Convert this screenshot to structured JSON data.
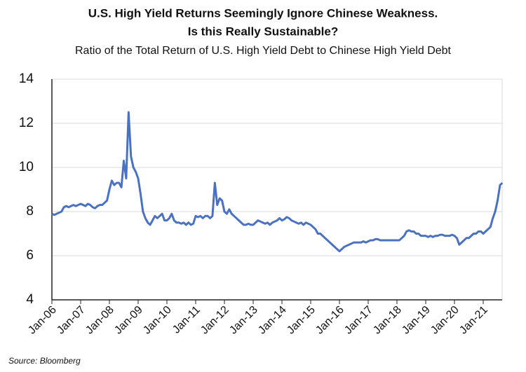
{
  "chart_data": {
    "type": "line",
    "title": [
      "U.S. High Yield Returns Seemingly Ignore Chinese Weakness.",
      "Is this Really Sustainable?"
    ],
    "subtitle": "Ratio of the Total Return of U.S. High Yield Debt to Chinese High Yield Debt",
    "source": "Source: Bloomberg",
    "categories": [
      "Jan-06",
      null,
      null,
      null,
      null,
      null,
      null,
      null,
      null,
      null,
      null,
      null,
      "Jan-07",
      null,
      null,
      null,
      null,
      null,
      null,
      null,
      null,
      null,
      null,
      null,
      "Jan-08",
      null,
      null,
      null,
      null,
      null,
      null,
      null,
      null,
      null,
      null,
      null,
      "Jan-09",
      null,
      null,
      null,
      null,
      null,
      null,
      null,
      null,
      null,
      null,
      null,
      "Jan-10",
      null,
      null,
      null,
      null,
      null,
      null,
      null,
      null,
      null,
      null,
      null,
      "Jan-11",
      null,
      null,
      null,
      null,
      null,
      null,
      null,
      null,
      null,
      null,
      null,
      "Jan-12",
      null,
      null,
      null,
      null,
      null,
      null,
      null,
      null,
      null,
      null,
      null,
      "Jan-13",
      null,
      null,
      null,
      null,
      null,
      null,
      null,
      null,
      null,
      null,
      null,
      "Jan-14",
      null,
      null,
      null,
      null,
      null,
      null,
      null,
      null,
      null,
      null,
      null,
      "Jan-15",
      null,
      null,
      null,
      null,
      null,
      null,
      null,
      null,
      null,
      null,
      null,
      "Jan-16",
      null,
      null,
      null,
      null,
      null,
      null,
      null,
      null,
      null,
      null,
      null,
      "Jan-17",
      null,
      null,
      null,
      null,
      null,
      null,
      null,
      null,
      null,
      null,
      null,
      "Jan-18",
      null,
      null,
      null,
      null,
      null,
      null,
      null,
      null,
      null,
      null,
      null,
      "Jan-19",
      null,
      null,
      null,
      null,
      null,
      null,
      null,
      null,
      null,
      null,
      null,
      "Jan-20",
      null,
      null,
      null,
      null,
      null,
      null,
      null,
      null,
      null,
      null,
      null,
      "Jan-21",
      null,
      null,
      null,
      null,
      null,
      null,
      null,
      null
    ],
    "series": [
      {
        "color": "#4a72c1",
        "values": [
          7.9,
          7.85,
          7.9,
          7.95,
          8.0,
          8.2,
          8.25,
          8.2,
          8.25,
          8.3,
          8.25,
          8.3,
          8.35,
          8.3,
          8.25,
          8.35,
          8.3,
          8.2,
          8.15,
          8.25,
          8.3,
          8.3,
          8.4,
          8.5,
          9.0,
          9.4,
          9.2,
          9.3,
          9.3,
          9.1,
          10.3,
          9.5,
          12.5,
          10.5,
          10.0,
          9.8,
          9.5,
          8.8,
          8.0,
          7.7,
          7.5,
          7.4,
          7.6,
          7.8,
          7.7,
          7.8,
          7.9,
          7.6,
          7.6,
          7.7,
          7.9,
          7.6,
          7.5,
          7.5,
          7.45,
          7.5,
          7.4,
          7.5,
          7.4,
          7.45,
          7.8,
          7.75,
          7.8,
          7.7,
          7.8,
          7.8,
          7.7,
          7.8,
          9.3,
          8.3,
          8.6,
          8.5,
          8.0,
          7.9,
          8.1,
          7.9,
          7.8,
          7.7,
          7.6,
          7.5,
          7.4,
          7.4,
          7.45,
          7.4,
          7.4,
          7.5,
          7.6,
          7.55,
          7.5,
          7.45,
          7.5,
          7.4,
          7.5,
          7.55,
          7.6,
          7.7,
          7.6,
          7.65,
          7.75,
          7.7,
          7.6,
          7.55,
          7.5,
          7.45,
          7.5,
          7.4,
          7.5,
          7.45,
          7.4,
          7.3,
          7.2,
          7.0,
          7.0,
          6.9,
          6.8,
          6.7,
          6.6,
          6.5,
          6.4,
          6.3,
          6.2,
          6.3,
          6.4,
          6.45,
          6.5,
          6.55,
          6.6,
          6.6,
          6.6,
          6.6,
          6.65,
          6.6,
          6.65,
          6.7,
          6.7,
          6.75,
          6.75,
          6.7,
          6.7,
          6.7,
          6.7,
          6.7,
          6.7,
          6.7,
          6.7,
          6.7,
          6.8,
          6.9,
          7.1,
          7.15,
          7.1,
          7.1,
          7.0,
          7.0,
          6.9,
          6.9,
          6.9,
          6.85,
          6.9,
          6.85,
          6.9,
          6.9,
          6.95,
          6.95,
          6.9,
          6.9,
          6.9,
          6.95,
          6.9,
          6.8,
          6.5,
          6.6,
          6.7,
          6.8,
          6.8,
          6.9,
          7.0,
          7.0,
          7.1,
          7.1,
          7.0,
          7.1,
          7.2,
          7.3,
          7.7,
          8.0,
          8.5,
          9.2,
          9.3
        ]
      }
    ],
    "ylim": [
      4,
      14
    ],
    "yticks": [
      4,
      6,
      8,
      10,
      12,
      14
    ],
    "grid": true
  }
}
